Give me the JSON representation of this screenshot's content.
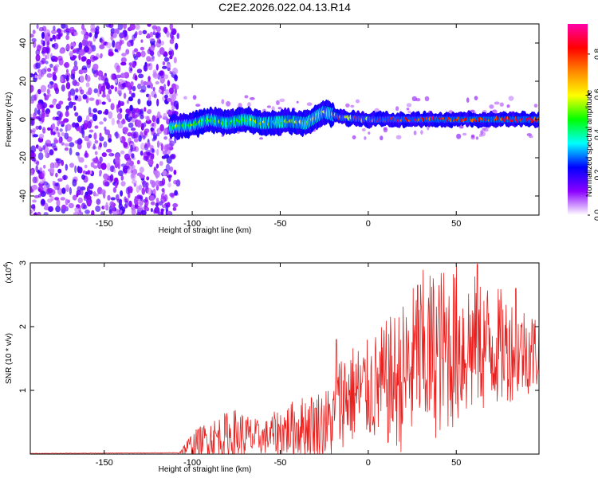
{
  "title": "C2E2.2026.022.04.13.R14",
  "chart_data": [
    {
      "type": "heatmap",
      "name": "spectrogram",
      "xlabel": "Height of straight line (km)",
      "ylabel": "Frequency (Hz)",
      "xlim": [
        -192,
        97
      ],
      "ylim": [
        -50,
        50
      ],
      "xticks": [
        -150,
        -100,
        -50,
        0,
        50
      ],
      "xtick_labels": [
        "-150",
        "-100",
        "-50",
        "0",
        "50"
      ],
      "yticks": [
        -40,
        -20,
        0,
        20,
        40
      ],
      "ytick_labels": [
        "-40",
        "-20",
        "0",
        "20",
        "40"
      ],
      "colorbar": {
        "label": "Normalized spectral amplitude",
        "range": [
          0,
          0.95
        ],
        "ticks": [
          0.0,
          0.2,
          0.4,
          0.6,
          0.8
        ],
        "tick_labels": [
          "0.0",
          "0.2",
          "0.4",
          "0.6",
          "0.8"
        ],
        "colors": [
          "#ffffff",
          "#8b00ff",
          "#0000ff",
          "#00ffff",
          "#00ff00",
          "#ffff00",
          "#ff8800",
          "#ff0000",
          "#ff00aa"
        ]
      },
      "features": [
        {
          "region": "noise",
          "x_range": [
            -192,
            -108
          ],
          "y_range": [
            -50,
            50
          ],
          "amplitude": [
            0.05,
            0.2
          ]
        },
        {
          "region": "signal",
          "x_range": [
            -112,
            97
          ],
          "center_hz": [
            [
              -112,
              -4
            ],
            [
              -100,
              -3
            ],
            [
              -90,
              0
            ],
            [
              -80,
              -2
            ],
            [
              -70,
              0
            ],
            [
              -60,
              -2
            ],
            [
              -45,
              -1
            ],
            [
              -35,
              -2
            ],
            [
              -25,
              4
            ],
            [
              -15,
              1
            ],
            [
              0,
              0
            ],
            [
              10,
              0
            ],
            [
              20,
              0
            ],
            [
              40,
              0
            ],
            [
              60,
              0
            ],
            [
              80,
              0
            ],
            [
              97,
              0
            ]
          ],
          "amplitude": [
            0.3,
            0.95
          ]
        }
      ]
    },
    {
      "type": "line",
      "name": "snr",
      "xlabel": "Height of straight line (km)",
      "ylabel": "SNR (10 * v/v)",
      "multiplier_label": "(x10",
      "multiplier_exp": "4",
      "multiplier_close": ")",
      "xlim": [
        -192,
        97
      ],
      "ylim": [
        0,
        30000
      ],
      "xticks": [
        -150,
        -100,
        -50,
        0,
        50
      ],
      "xtick_labels": [
        "-150",
        "-100",
        "-50",
        "0",
        "50"
      ],
      "yticks": [
        10000,
        20000,
        30000
      ],
      "ytick_labels": [
        "1",
        "2",
        "3"
      ],
      "color": "#e8201e",
      "envelope": [
        {
          "x": -192,
          "base": 100,
          "spread": 100
        },
        {
          "x": -108,
          "base": 200,
          "spread": 150
        },
        {
          "x": -100,
          "base": 1500,
          "spread": 2000
        },
        {
          "x": -90,
          "base": 2500,
          "spread": 3000
        },
        {
          "x": -75,
          "base": 2800,
          "spread": 4500
        },
        {
          "x": -60,
          "base": 2500,
          "spread": 2500
        },
        {
          "x": -50,
          "base": 3500,
          "spread": 4000
        },
        {
          "x": -35,
          "base": 4500,
          "spread": 5000
        },
        {
          "x": -20,
          "base": 5000,
          "spread": 6000
        },
        {
          "x": -15,
          "base": 9000,
          "spread": 8000
        },
        {
          "x": 0,
          "base": 10000,
          "spread": 8000
        },
        {
          "x": 20,
          "base": 12000,
          "spread": 12000
        },
        {
          "x": 30,
          "base": 15000,
          "spread": 14000
        },
        {
          "x": 50,
          "base": 17000,
          "spread": 13000
        },
        {
          "x": 70,
          "base": 17000,
          "spread": 10000
        },
        {
          "x": 97,
          "base": 16000,
          "spread": 6000
        }
      ],
      "peak_annotations": [
        {
          "x": -18,
          "y": 18000
        },
        {
          "x": 28,
          "y": 26500
        },
        {
          "x": 62,
          "y": 29800
        },
        {
          "x": 84,
          "y": 26000
        }
      ]
    }
  ]
}
